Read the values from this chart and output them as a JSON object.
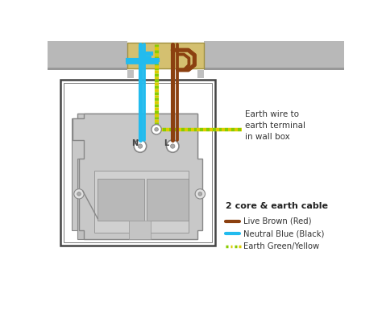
{
  "bg_color": "#ffffff",
  "wall_color": "#b8b8b8",
  "wall_shadow": "#989898",
  "conduit_fill": "#d4c070",
  "conduit_edge": "#a09040",
  "box_border": "#555555",
  "body_color": "#c8c8c8",
  "body_edge": "#888888",
  "brown_color": "#8B4010",
  "blue_color": "#22BBEE",
  "earth_green": "#88CC00",
  "earth_yellow": "#DDCC00",
  "annotation_text": "Earth wire to\nearth terminal\nin wall box",
  "legend_title": "2 core & earth cable",
  "legend_items": [
    {
      "label": "Live Brown (Red)",
      "color": "#8B4010"
    },
    {
      "label": "Neutral Blue (Black)",
      "color": "#22BBEE"
    },
    {
      "label": "Earth Green/Yellow",
      "color": "#88CC00"
    }
  ]
}
